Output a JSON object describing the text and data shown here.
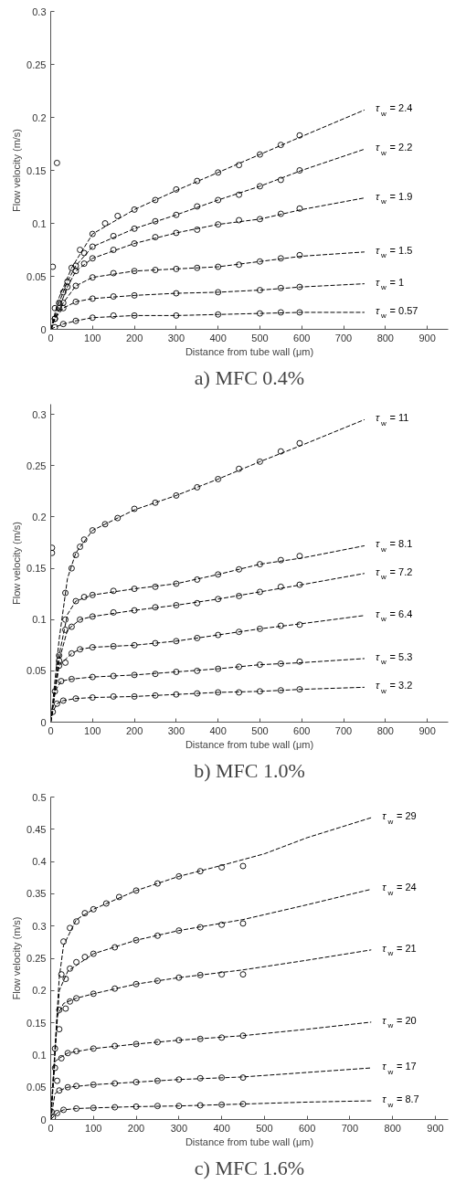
{
  "chart_data": [
    {
      "type": "scatter",
      "title": "a) MFC 0.4%",
      "xlabel": "Distance from tube wall (μm)",
      "ylabel": "Flow velocity (m/s)",
      "xlim": [
        0,
        950
      ],
      "ylim": [
        0,
        0.3
      ],
      "xticks": [
        0,
        100,
        200,
        300,
        400,
        500,
        600,
        700,
        800,
        900
      ],
      "yticks": [
        0,
        0.05,
        0.1,
        0.15,
        0.2,
        0.25,
        0.3
      ],
      "grid": false,
      "marker": "circle",
      "line_style": "dashed",
      "series": [
        {
          "color": "#000000",
          "x": [
            5,
            15,
            10,
            30,
            50,
            70,
            100,
            130,
            160,
            200,
            250,
            300,
            350,
            400,
            450,
            500,
            550,
            595
          ],
          "values": [
            0.059,
            0.157,
            0.02,
            0.035,
            0.058,
            0.075,
            0.09,
            0.1,
            0.107,
            0.113,
            0.122,
            0.132,
            0.14,
            0.148,
            0.155,
            0.165,
            0.174,
            0.183
          ]
        },
        {
          "type": "line",
          "marker": "none",
          "name": "τ$_{w}$ = 2.4",
          "color": "#000000",
          "x": [
            0,
            20,
            50,
            100,
            200,
            300,
            400,
            500,
            600,
            750
          ],
          "values": [
            0,
            0.03,
            0.058,
            0.09,
            0.113,
            0.131,
            0.148,
            0.165,
            0.182,
            0.207
          ]
        },
        {
          "color": "#000000",
          "x": [
            20,
            40,
            60,
            80,
            100,
            150,
            200,
            250,
            300,
            350,
            400,
            450,
            500,
            550,
            595
          ],
          "values": [
            0.025,
            0.045,
            0.06,
            0.072,
            0.078,
            0.088,
            0.095,
            0.102,
            0.108,
            0.116,
            0.122,
            0.127,
            0.135,
            0.141,
            0.15
          ]
        },
        {
          "type": "line",
          "marker": "none",
          "name": "τ$_{w}$ = 2.2",
          "color": "#000000",
          "x": [
            0,
            20,
            40,
            60,
            100,
            200,
            300,
            400,
            500,
            600,
            750
          ],
          "values": [
            0,
            0.025,
            0.045,
            0.06,
            0.078,
            0.095,
            0.108,
            0.122,
            0.135,
            0.15,
            0.17
          ]
        },
        {
          "color": "#000000",
          "x": [
            20,
            40,
            60,
            80,
            100,
            150,
            200,
            250,
            300,
            350,
            400,
            450,
            500,
            550,
            595
          ],
          "values": [
            0.02,
            0.04,
            0.055,
            0.062,
            0.067,
            0.075,
            0.081,
            0.087,
            0.091,
            0.094,
            0.099,
            0.103,
            0.104,
            0.109,
            0.114
          ]
        },
        {
          "type": "line",
          "marker": "none",
          "name": "τ$_{w}$ = 1.9",
          "color": "#000000",
          "x": [
            0,
            20,
            40,
            60,
            100,
            200,
            300,
            400,
            500,
            600,
            750
          ],
          "values": [
            0,
            0.02,
            0.04,
            0.055,
            0.067,
            0.081,
            0.091,
            0.099,
            0.104,
            0.113,
            0.124
          ]
        },
        {
          "color": "#000000",
          "x": [
            10,
            30,
            60,
            100,
            150,
            200,
            250,
            300,
            350,
            400,
            450,
            500,
            550,
            595
          ],
          "values": [
            0.01,
            0.025,
            0.041,
            0.049,
            0.053,
            0.055,
            0.056,
            0.057,
            0.058,
            0.059,
            0.061,
            0.064,
            0.067,
            0.07
          ]
        },
        {
          "type": "line",
          "marker": "none",
          "name": "τ$_{w}$ = 1.5",
          "color": "#000000",
          "x": [
            0,
            10,
            30,
            60,
            100,
            200,
            300,
            400,
            500,
            600,
            750
          ],
          "values": [
            0,
            0.01,
            0.025,
            0.041,
            0.049,
            0.055,
            0.057,
            0.059,
            0.064,
            0.069,
            0.073
          ]
        },
        {
          "color": "#000000",
          "x": [
            10,
            30,
            60,
            100,
            150,
            200,
            300,
            400,
            500,
            550,
            595
          ],
          "values": [
            0.01,
            0.02,
            0.026,
            0.029,
            0.031,
            0.032,
            0.034,
            0.035,
            0.037,
            0.039,
            0.04
          ]
        },
        {
          "type": "line",
          "marker": "none",
          "name": "τ$_{w}$ = 1",
          "color": "#000000",
          "x": [
            0,
            10,
            30,
            60,
            100,
            200,
            300,
            400,
            500,
            600,
            750
          ],
          "values": [
            0,
            0.01,
            0.02,
            0.026,
            0.029,
            0.032,
            0.034,
            0.035,
            0.037,
            0.04,
            0.043
          ]
        },
        {
          "color": "#000000",
          "x": [
            10,
            30,
            60,
            100,
            150,
            200,
            300,
            400,
            500,
            550,
            595
          ],
          "values": [
            0.002,
            0.005,
            0.008,
            0.011,
            0.013,
            0.013,
            0.013,
            0.014,
            0.015,
            0.016,
            0.016
          ]
        },
        {
          "type": "line",
          "marker": "none",
          "name": "τ$_{w}$ = 0.57",
          "color": "#000000",
          "x": [
            0,
            10,
            30,
            60,
            100,
            200,
            300,
            400,
            500,
            600,
            750
          ],
          "values": [
            0,
            0.002,
            0.005,
            0.008,
            0.011,
            0.013,
            0.013,
            0.014,
            0.015,
            0.016,
            0.016
          ]
        }
      ]
    },
    {
      "type": "scatter",
      "title": "b) MFC 1.0%",
      "xlabel": "Distance from tube wall (μm)",
      "ylabel": "Flow velocity (m/s)",
      "xlim": [
        0,
        950
      ],
      "ylim": [
        0,
        0.31
      ],
      "xticks": [
        0,
        100,
        200,
        300,
        400,
        500,
        600,
        700,
        800,
        900
      ],
      "yticks": [
        0,
        0.05,
        0.1,
        0.15,
        0.2,
        0.25,
        0.3
      ],
      "grid": false,
      "marker": "circle",
      "line_style": "dashed",
      "series": [
        {
          "color": "#000000",
          "x": [
            3,
            3,
            35,
            50,
            60,
            70,
            80,
            100,
            130,
            160,
            200,
            250,
            300,
            350,
            400,
            450,
            500,
            550,
            595
          ],
          "values": [
            0.17,
            0.165,
            0.126,
            0.15,
            0.163,
            0.171,
            0.178,
            0.187,
            0.193,
            0.199,
            0.208,
            0.214,
            0.221,
            0.229,
            0.237,
            0.247,
            0.254,
            0.264,
            0.272
          ]
        },
        {
          "type": "line",
          "marker": "none",
          "name": "τ$_{w}$ = 11",
          "color": "#000000",
          "x": [
            0,
            20,
            40,
            60,
            100,
            200,
            300,
            400,
            500,
            600,
            750
          ],
          "values": [
            0,
            0.08,
            0.14,
            0.165,
            0.187,
            0.207,
            0.221,
            0.237,
            0.254,
            0.27,
            0.295
          ]
        },
        {
          "color": "#000000",
          "x": [
            20,
            35,
            60,
            80,
            100,
            150,
            200,
            250,
            300,
            350,
            400,
            450,
            500,
            550,
            595
          ],
          "values": [
            0.065,
            0.1,
            0.118,
            0.122,
            0.124,
            0.128,
            0.13,
            0.132,
            0.135,
            0.139,
            0.144,
            0.149,
            0.154,
            0.158,
            0.162
          ]
        },
        {
          "type": "line",
          "marker": "none",
          "name": "τ$_{w}$ = 8.1",
          "color": "#000000",
          "x": [
            0,
            20,
            40,
            60,
            100,
            200,
            300,
            400,
            500,
            600,
            750
          ],
          "values": [
            0,
            0.065,
            0.105,
            0.118,
            0.124,
            0.13,
            0.135,
            0.144,
            0.154,
            0.16,
            0.172
          ]
        },
        {
          "color": "#000000",
          "x": [
            20,
            35,
            50,
            70,
            100,
            150,
            200,
            250,
            300,
            350,
            400,
            450,
            500,
            550,
            595
          ],
          "values": [
            0.06,
            0.09,
            0.093,
            0.1,
            0.103,
            0.107,
            0.109,
            0.112,
            0.114,
            0.116,
            0.12,
            0.123,
            0.127,
            0.132,
            0.134
          ]
        },
        {
          "type": "line",
          "marker": "none",
          "name": "τ$_{w}$ = 7.2",
          "color": "#000000",
          "x": [
            0,
            20,
            40,
            70,
            100,
            200,
            300,
            400,
            500,
            600,
            750
          ],
          "values": [
            0,
            0.06,
            0.09,
            0.1,
            0.103,
            0.109,
            0.114,
            0.12,
            0.127,
            0.134,
            0.145
          ]
        },
        {
          "color": "#000000",
          "x": [
            20,
            35,
            50,
            70,
            100,
            150,
            200,
            250,
            300,
            350,
            400,
            450,
            500,
            550,
            595
          ],
          "values": [
            0.055,
            0.058,
            0.067,
            0.071,
            0.073,
            0.074,
            0.075,
            0.077,
            0.079,
            0.082,
            0.085,
            0.088,
            0.091,
            0.094,
            0.095
          ]
        },
        {
          "type": "line",
          "marker": "none",
          "name": "τ$_{w}$ = 6.4",
          "color": "#000000",
          "x": [
            0,
            20,
            50,
            70,
            100,
            200,
            300,
            400,
            500,
            600,
            750
          ],
          "values": [
            0,
            0.055,
            0.067,
            0.071,
            0.073,
            0.075,
            0.079,
            0.085,
            0.091,
            0.096,
            0.104
          ]
        },
        {
          "color": "#000000",
          "x": [
            10,
            25,
            50,
            100,
            150,
            200,
            250,
            300,
            350,
            400,
            450,
            500,
            550,
            595
          ],
          "values": [
            0.03,
            0.04,
            0.042,
            0.044,
            0.045,
            0.046,
            0.047,
            0.049,
            0.05,
            0.052,
            0.054,
            0.056,
            0.057,
            0.059
          ]
        },
        {
          "type": "line",
          "marker": "none",
          "name": "τ$_{w}$ = 5.3",
          "color": "#000000",
          "x": [
            0,
            10,
            25,
            50,
            100,
            200,
            300,
            400,
            500,
            600,
            750
          ],
          "values": [
            0,
            0.03,
            0.04,
            0.042,
            0.044,
            0.046,
            0.049,
            0.052,
            0.056,
            0.058,
            0.062
          ]
        },
        {
          "color": "#000000",
          "x": [
            5,
            15,
            30,
            60,
            100,
            150,
            200,
            250,
            300,
            350,
            400,
            450,
            500,
            550,
            595
          ],
          "values": [
            0.01,
            0.018,
            0.021,
            0.023,
            0.024,
            0.025,
            0.025,
            0.026,
            0.027,
            0.028,
            0.029,
            0.029,
            0.03,
            0.031,
            0.032
          ]
        },
        {
          "type": "line",
          "marker": "none",
          "name": "τ$_{w}$ = 3.2",
          "color": "#000000",
          "x": [
            0,
            5,
            15,
            30,
            60,
            100,
            200,
            300,
            400,
            500,
            600,
            750
          ],
          "values": [
            0,
            0.01,
            0.018,
            0.021,
            0.023,
            0.024,
            0.025,
            0.027,
            0.029,
            0.03,
            0.032,
            0.034
          ]
        }
      ]
    },
    {
      "type": "scatter",
      "title": "c) MFC 1.6%",
      "xlabel": "Distance from tube wall (μm)",
      "ylabel": "Flow velocity (m/s)",
      "xlim": [
        0,
        930
      ],
      "ylim": [
        0,
        0.5
      ],
      "xticks": [
        0,
        100,
        200,
        300,
        400,
        500,
        600,
        700,
        800,
        900
      ],
      "yticks": [
        0,
        0.05,
        0.1,
        0.15,
        0.2,
        0.25,
        0.3,
        0.35,
        0.4,
        0.45,
        0.5
      ],
      "grid": false,
      "marker": "circle",
      "line_style": "dashed",
      "series": [
        {
          "color": "#000000",
          "x": [
            30,
            45,
            60,
            80,
            100,
            130,
            160,
            200,
            250,
            300,
            350,
            400,
            450
          ],
          "values": [
            0.276,
            0.297,
            0.307,
            0.32,
            0.326,
            0.335,
            0.345,
            0.355,
            0.366,
            0.377,
            0.385,
            0.391,
            0.393
          ]
        },
        {
          "type": "line",
          "marker": "none",
          "name": "τ$_{w}$ = 29",
          "color": "#000000",
          "x": [
            0,
            20,
            30,
            60,
            100,
            200,
            300,
            400,
            500,
            600,
            750
          ],
          "values": [
            0,
            0.22,
            0.27,
            0.31,
            0.326,
            0.355,
            0.377,
            0.394,
            0.412,
            0.437,
            0.468
          ]
        },
        {
          "color": "#000000",
          "x": [
            25,
            35,
            45,
            60,
            80,
            100,
            150,
            200,
            250,
            300,
            350,
            400,
            450
          ],
          "values": [
            0.225,
            0.218,
            0.234,
            0.244,
            0.252,
            0.257,
            0.267,
            0.278,
            0.285,
            0.293,
            0.298,
            0.302,
            0.304
          ]
        },
        {
          "type": "line",
          "marker": "none",
          "name": "τ$_{w}$ = 24",
          "color": "#000000",
          "x": [
            0,
            20,
            40,
            100,
            200,
            300,
            450,
            600,
            750
          ],
          "values": [
            0,
            0.2,
            0.23,
            0.257,
            0.278,
            0.293,
            0.31,
            0.333,
            0.357
          ]
        },
        {
          "color": "#000000",
          "x": [
            20,
            35,
            45,
            60,
            100,
            150,
            200,
            250,
            300,
            350,
            400,
            450
          ],
          "values": [
            0.17,
            0.172,
            0.183,
            0.188,
            0.195,
            0.203,
            0.21,
            0.215,
            0.22,
            0.224,
            0.225,
            0.225
          ]
        },
        {
          "type": "line",
          "marker": "none",
          "name": "τ$_{w}$ = 21",
          "color": "#000000",
          "x": [
            0,
            15,
            30,
            60,
            100,
            200,
            300,
            450,
            600,
            750
          ],
          "values": [
            0,
            0.16,
            0.18,
            0.188,
            0.195,
            0.21,
            0.22,
            0.232,
            0.247,
            0.263
          ]
        },
        {
          "color": "#000000",
          "x": [
            10,
            20,
            25,
            40,
            60,
            100,
            150,
            200,
            250,
            300,
            350,
            400,
            450
          ],
          "values": [
            0.11,
            0.14,
            0.095,
            0.103,
            0.106,
            0.11,
            0.114,
            0.117,
            0.12,
            0.123,
            0.125,
            0.127,
            0.13
          ]
        },
        {
          "type": "line",
          "marker": "none",
          "name": "τ$_{w}$ = 20",
          "color": "#000000",
          "x": [
            0,
            10,
            25,
            40,
            100,
            200,
            300,
            450,
            600,
            750
          ],
          "values": [
            0,
            0.09,
            0.097,
            0.103,
            0.11,
            0.117,
            0.123,
            0.13,
            0.14,
            0.151
          ]
        },
        {
          "color": "#000000",
          "x": [
            10,
            15,
            20,
            40,
            60,
            100,
            150,
            200,
            250,
            300,
            350,
            400,
            450
          ],
          "values": [
            0.08,
            0.06,
            0.045,
            0.05,
            0.052,
            0.054,
            0.056,
            0.058,
            0.06,
            0.062,
            0.064,
            0.065,
            0.065
          ]
        },
        {
          "type": "line",
          "marker": "none",
          "name": "τ$_{w}$ = 17",
          "color": "#000000",
          "x": [
            0,
            10,
            20,
            40,
            100,
            200,
            300,
            450,
            600,
            750
          ],
          "values": [
            0,
            0.04,
            0.045,
            0.05,
            0.054,
            0.058,
            0.062,
            0.066,
            0.073,
            0.08
          ]
        },
        {
          "color": "#000000",
          "x": [
            2,
            5,
            15,
            30,
            60,
            100,
            150,
            200,
            250,
            300,
            350,
            400,
            450
          ],
          "values": [
            0.012,
            0.003,
            0.01,
            0.015,
            0.017,
            0.018,
            0.019,
            0.02,
            0.021,
            0.021,
            0.022,
            0.023,
            0.024
          ]
        },
        {
          "type": "line",
          "marker": "none",
          "name": "τ$_{w}$ = 8.7",
          "color": "#000000",
          "x": [
            0,
            15,
            30,
            60,
            100,
            200,
            300,
            450,
            600,
            750
          ],
          "values": [
            0,
            0.01,
            0.015,
            0.017,
            0.018,
            0.02,
            0.021,
            0.024,
            0.027,
            0.029
          ]
        }
      ]
    }
  ]
}
